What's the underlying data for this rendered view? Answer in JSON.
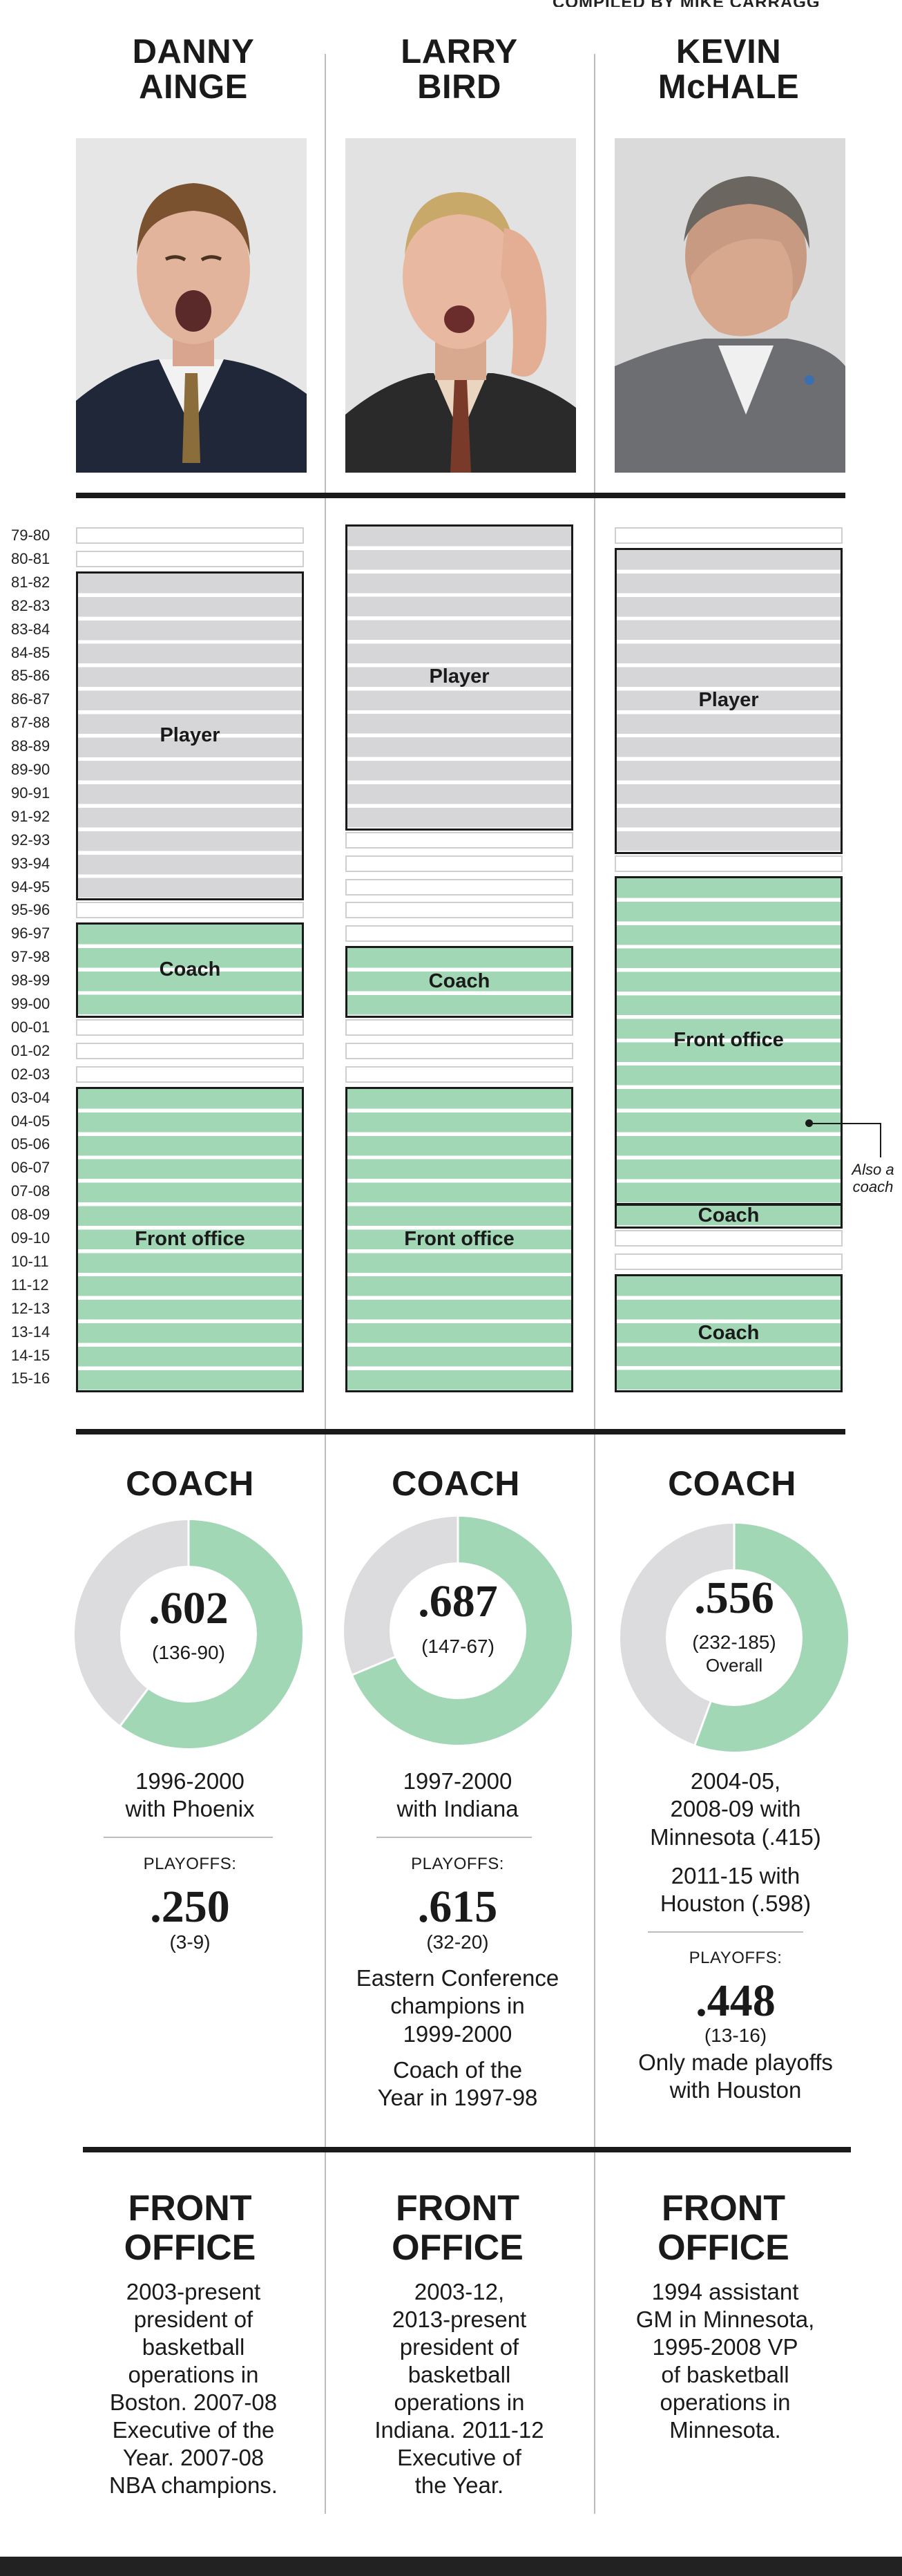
{
  "credit": "COMPILED BY MIKE CARRAGG",
  "people": [
    {
      "name_line1": "DANNY",
      "name_line2": "AINGE"
    },
    {
      "name_line1": "LARRY",
      "name_line2": "BIRD"
    },
    {
      "name_line1": "KEVIN",
      "name_line2": "McHALE"
    }
  ],
  "seasons": [
    "79-80",
    "80-81",
    "81-82",
    "82-83",
    "83-84",
    "84-85",
    "85-86",
    "86-87",
    "87-88",
    "88-89",
    "89-90",
    "90-91",
    "91-92",
    "92-93",
    "93-94",
    "94-95",
    "95-96",
    "96-97",
    "97-98",
    "98-99",
    "99-00",
    "00-01",
    "01-02",
    "02-03",
    "03-04",
    "04-05",
    "05-06",
    "06-07",
    "07-08",
    "08-09",
    "09-10",
    "10-11",
    "11-12",
    "12-13",
    "13-14",
    "14-15",
    "15-16"
  ],
  "timeline": {
    "ainge": [
      {
        "label": "Player",
        "type": "player",
        "start": 2,
        "end": 15
      },
      {
        "label": "Coach",
        "type": "green",
        "start": 17,
        "end": 20
      },
      {
        "label": "Front office",
        "type": "green",
        "start": 24,
        "end": 36
      }
    ],
    "bird": [
      {
        "label": "Player",
        "type": "player",
        "start": 0,
        "end": 12
      },
      {
        "label": "Coach",
        "type": "green",
        "start": 18,
        "end": 20
      },
      {
        "label": "Front office",
        "type": "green",
        "start": 24,
        "end": 36
      }
    ],
    "mchale": [
      {
        "label": "Player",
        "type": "player",
        "start": 1,
        "end": 13
      },
      {
        "label": "Front office",
        "type": "green",
        "start": 15,
        "end": 28
      },
      {
        "label": "Coach",
        "type": "green",
        "start": 29,
        "end": 29
      },
      {
        "label": "Coach",
        "type": "green",
        "start": 32,
        "end": 36
      }
    ],
    "mchale_note": {
      "line1": "Also a",
      "line2": "coach"
    }
  },
  "coach": {
    "heading": "COACH",
    "colors": {
      "win": "#a2d7b5",
      "loss": "#dcdcde"
    },
    "ainge": {
      "pct": ".602",
      "record": "(136-90)",
      "win_fraction": 0.602,
      "years_line1": "1996-2000",
      "years_line2": "with Phoenix",
      "playoffs_label": "PLAYOFFS:",
      "playoffs_pct": ".250",
      "playoffs_record": "(3-9)"
    },
    "bird": {
      "pct": ".687",
      "record": "(147-67)",
      "win_fraction": 0.687,
      "years_line1": "1997-2000",
      "years_line2": "with Indiana",
      "playoffs_label": "PLAYOFFS:",
      "playoffs_pct": ".615",
      "playoffs_record": "(32-20)",
      "note1_line1": "Eastern Conference",
      "note1_line2": "champions in",
      "note1_line3": "1999-2000",
      "note2_line1": "Coach of the",
      "note2_line2": "Year in 1997-98"
    },
    "mchale": {
      "pct": ".556",
      "record": "(232-185)",
      "overall": "Overall",
      "win_fraction": 0.556,
      "years_line1": "2004-05,",
      "years_line2": "2008-09 with",
      "years_line3": "Minnesota (.415)",
      "years2_line1": "2011-15 with",
      "years2_line2": "Houston (.598)",
      "playoffs_label": "PLAYOFFS:",
      "playoffs_pct": ".448",
      "playoffs_record": "(13-16)",
      "note_line1": "Only made playoffs",
      "note_line2": "with Houston"
    }
  },
  "front_office": {
    "heading_line1": "FRONT",
    "heading_line2": "OFFICE",
    "ainge": [
      "2003-present",
      "president of",
      "basketball",
      "operations in",
      "Boston. 2007-08",
      "Executive of the",
      "Year. 2007-08",
      "NBA champions."
    ],
    "bird": [
      "2003-12,",
      "2013-present",
      "president of",
      "basketball",
      "operations in",
      "Indiana. 2011-12",
      "Executive of",
      "the Year."
    ],
    "mchale": [
      "1994 assistant",
      "GM in Minnesota,",
      "1995-2008 VP",
      "of basketball",
      "operations in",
      "Minnesota."
    ]
  }
}
